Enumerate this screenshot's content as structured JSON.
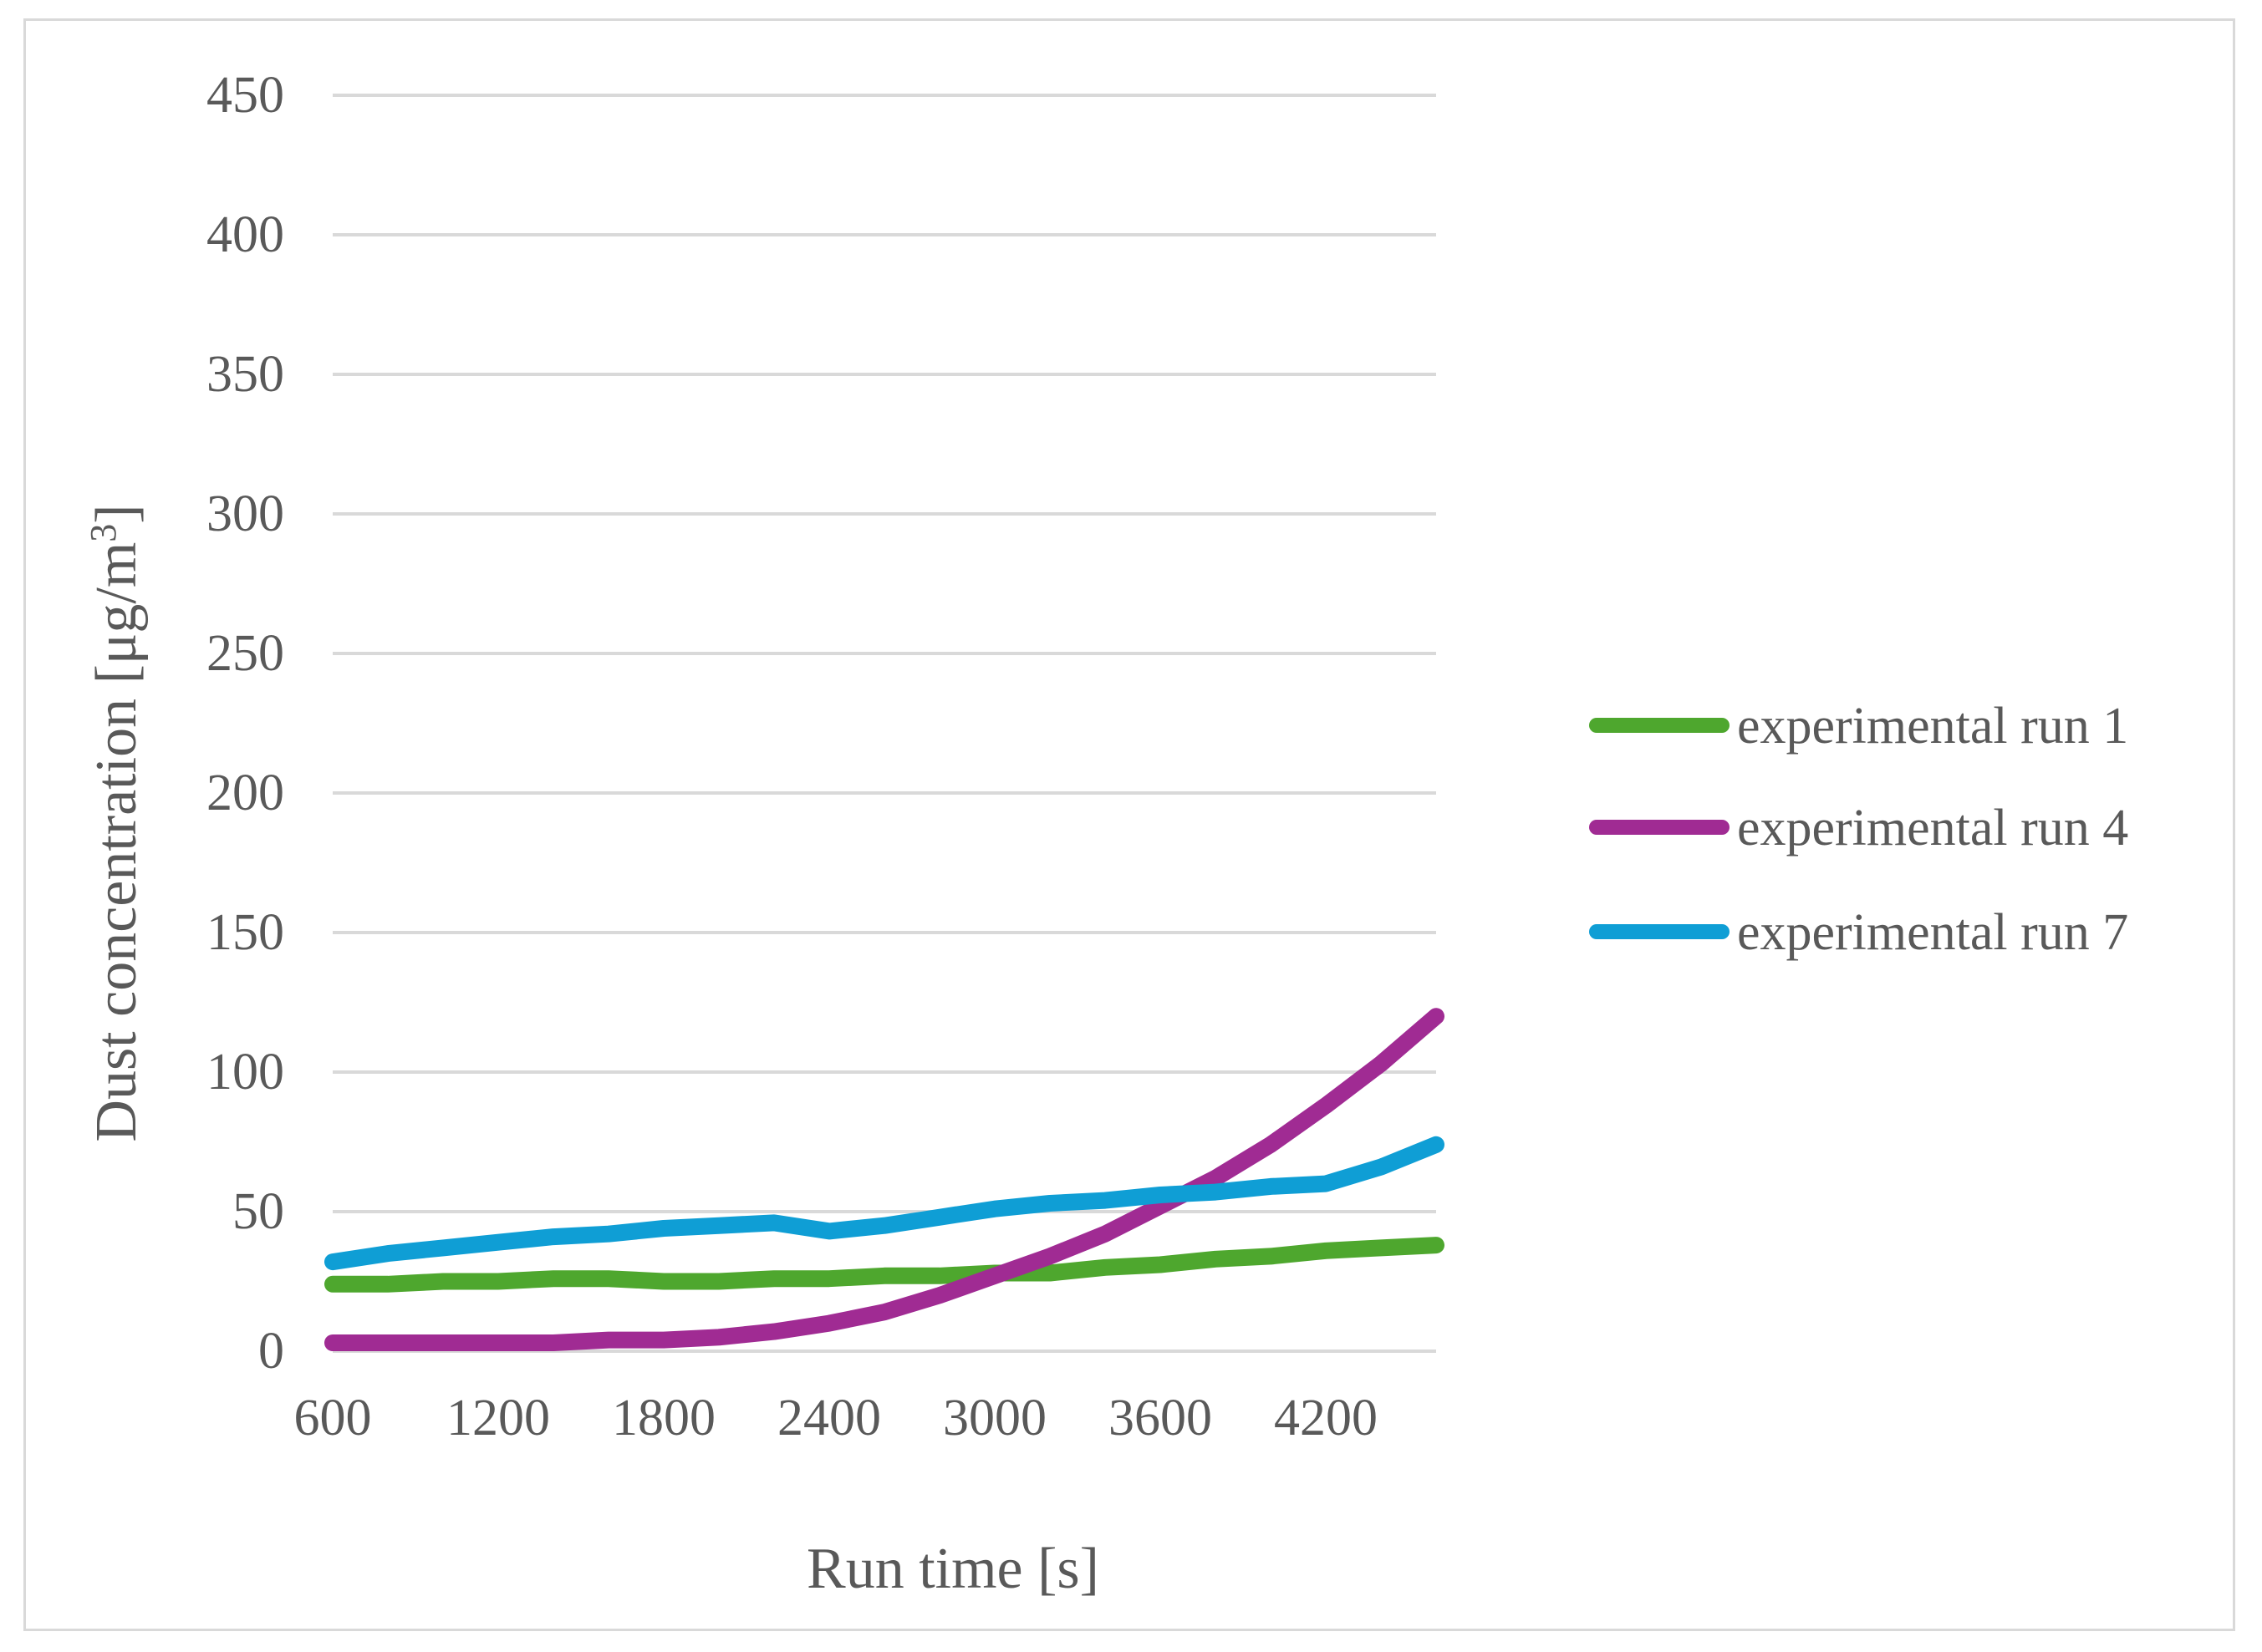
{
  "chart_data": {
    "type": "line",
    "title": "",
    "xlabel": "Run time [s]",
    "ylabel_main": "Dust concentration [μg/m",
    "ylabel_sup": "3",
    "ylabel_close": "]",
    "xlim": [
      600,
      4600
    ],
    "ylim": [
      0,
      450
    ],
    "x_ticks": [
      600,
      1200,
      1800,
      2400,
      3000,
      3600,
      4200
    ],
    "y_ticks": [
      0,
      50,
      100,
      150,
      200,
      250,
      300,
      350,
      400,
      450
    ],
    "grid": "horizontal",
    "legend_position": "right",
    "series": [
      {
        "name": "experimental run 1",
        "color": "#4ea72e",
        "x": [
          600,
          800,
          1000,
          1200,
          1400,
          1600,
          1800,
          2000,
          2200,
          2400,
          2600,
          2800,
          3000,
          3200,
          3400,
          3600,
          3800,
          4000,
          4200,
          4400,
          4600
        ],
        "y": [
          24,
          24,
          25,
          25,
          26,
          26,
          25,
          25,
          26,
          26,
          27,
          27,
          28,
          28,
          30,
          31,
          33,
          34,
          36,
          37,
          38
        ]
      },
      {
        "name": "experimental run 4",
        "color": "#a02b93",
        "x": [
          600,
          800,
          1000,
          1200,
          1400,
          1600,
          1800,
          2000,
          2200,
          2400,
          2600,
          2800,
          3000,
          3200,
          3400,
          3600,
          3800,
          4000,
          4200,
          4400,
          4600
        ],
        "y": [
          3,
          3,
          3,
          3,
          3,
          4,
          4,
          5,
          7,
          10,
          14,
          20,
          27,
          34,
          42,
          52,
          62,
          74,
          88,
          103,
          120
        ]
      },
      {
        "name": "experimental run 7",
        "color": "#0f9ed5",
        "x": [
          600,
          800,
          1000,
          1200,
          1400,
          1600,
          1800,
          2000,
          2200,
          2400,
          2600,
          2800,
          3000,
          3200,
          3400,
          3600,
          3800,
          4000,
          4200,
          4400,
          4600
        ],
        "y": [
          32,
          35,
          37,
          39,
          41,
          42,
          44,
          45,
          46,
          43,
          45,
          48,
          51,
          53,
          54,
          56,
          57,
          59,
          60,
          66,
          74
        ]
      }
    ]
  }
}
